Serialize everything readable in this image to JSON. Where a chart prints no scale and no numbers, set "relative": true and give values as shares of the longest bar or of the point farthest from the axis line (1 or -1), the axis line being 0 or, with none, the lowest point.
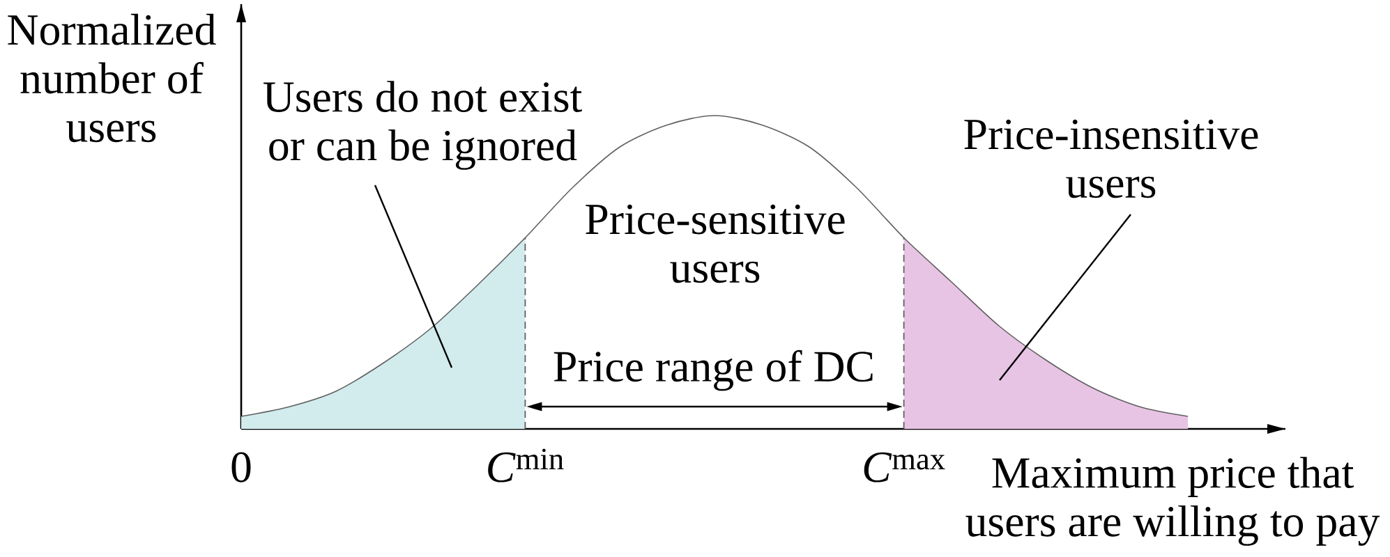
{
  "chart_data": {
    "type": "line",
    "relative": true,
    "xlabel": "Maximum price that users are willing to pay",
    "ylabel": "Normalized number of users",
    "categories": [
      "0",
      null,
      null,
      null,
      null,
      null,
      "*C*$^{min}$",
      null,
      null,
      null,
      null,
      null,
      null,
      null,
      "*C*$^{max}$",
      null,
      null,
      null,
      null,
      null,
      null
    ],
    "series": [
      {
        "type": "area",
        "color": "#d2ecee",
        "values": [
          0.04,
          0.07,
          0.12,
          0.21,
          0.32,
          0.46,
          0.61,
          null,
          null,
          null,
          null,
          null,
          null,
          null,
          null,
          null,
          null,
          null,
          null,
          null,
          null
        ]
      },
      {
        "type": "area",
        "color": "#e8c4e4",
        "values": [
          null,
          null,
          null,
          null,
          null,
          null,
          null,
          null,
          null,
          null,
          null,
          null,
          null,
          null,
          0.61,
          0.47,
          0.33,
          0.22,
          0.13,
          0.07,
          0.04
        ]
      },
      {
        "type": "line",
        "color": "#606060",
        "values": [
          0.04,
          0.07,
          0.12,
          0.21,
          0.32,
          0.46,
          0.61,
          0.77,
          0.9,
          0.97,
          1,
          0.97,
          0.9,
          0.77,
          0.61,
          0.47,
          0.33,
          0.22,
          0.13,
          0.07,
          0.04
        ]
      }
    ],
    "ref_lines": [
      {
        "axis": "x",
        "value": "*C*$^{min}$",
        "line_style": "dashed",
        "color": "#606060"
      },
      {
        "axis": "x",
        "value": "*C*$^{max}$",
        "line_style": "dashed",
        "color": "#606060"
      }
    ],
    "annotations": [
      "Users do not exist or can be ignored",
      "Price-sensitive users",
      "Price range of DC",
      "Price-insensitive users"
    ]
  }
}
